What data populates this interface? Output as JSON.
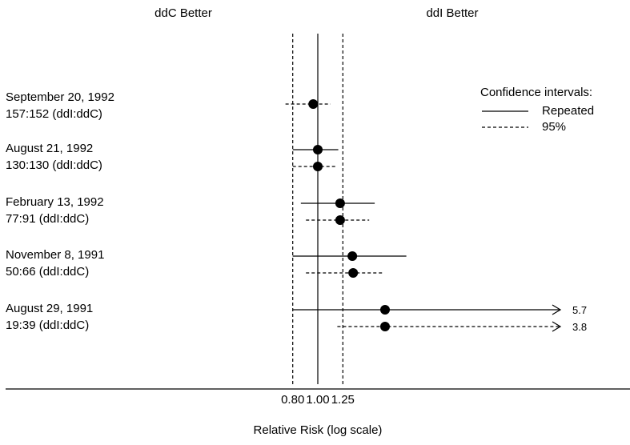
{
  "chart_data": {
    "type": "forest",
    "headers": {
      "left": "ddC Better",
      "right": "ddI Better"
    },
    "xlabel": "Relative Risk (log scale)",
    "x_scale": "log",
    "x_ticks": [
      {
        "value": 0.8,
        "label": "0.80"
      },
      {
        "value": 1.0,
        "label": "1.00"
      },
      {
        "value": 1.25,
        "label": "1.25"
      }
    ],
    "reference_lines": [
      0.8,
      1.0,
      1.25
    ],
    "legend": {
      "title": "Confidence intervals:",
      "placement": "top-right",
      "entries": [
        {
          "style": "solid",
          "label": "Repeated"
        },
        {
          "style": "dashed",
          "label": "95%"
        }
      ]
    },
    "rows": [
      {
        "date": "September 20, 1992",
        "ratio": "157:152 (ddI:ddC)",
        "estimates": [
          {
            "interval": "95%",
            "point": 0.96,
            "low": 0.75,
            "high": 1.12
          }
        ]
      },
      {
        "date": "August 21, 1992",
        "ratio": "130:130 (ddI:ddC)",
        "estimates": [
          {
            "interval": "Repeated",
            "point": 1.0,
            "low": 0.8,
            "high": 1.2
          },
          {
            "interval": "95%",
            "point": 1.0,
            "low": 0.8,
            "high": 1.19
          }
        ]
      },
      {
        "date": "February 13, 1992",
        "ratio": "77:91 (ddI:ddC)",
        "estimates": [
          {
            "interval": "Repeated",
            "point": 1.22,
            "low": 0.86,
            "high": 1.66
          },
          {
            "interval": "95%",
            "point": 1.22,
            "low": 0.9,
            "high": 1.58
          }
        ]
      },
      {
        "date": "November 8, 1991",
        "ratio": "50:66 (ddI:ddC)",
        "estimates": [
          {
            "interval": "Repeated",
            "point": 1.36,
            "low": 0.8,
            "high": 2.2
          },
          {
            "interval": "95%",
            "point": 1.37,
            "low": 0.9,
            "high": 1.8
          }
        ]
      },
      {
        "date": "August 29, 1991",
        "ratio": "19:39 (ddI:ddC)",
        "estimates": [
          {
            "interval": "Repeated",
            "point": 1.82,
            "low": 0.8,
            "high": 5.7,
            "arrow": true,
            "arrow_label": "5.7"
          },
          {
            "interval": "95%",
            "point": 1.82,
            "low": 1.19,
            "high": 3.8,
            "arrow": true,
            "arrow_label": "3.8"
          }
        ]
      }
    ]
  }
}
